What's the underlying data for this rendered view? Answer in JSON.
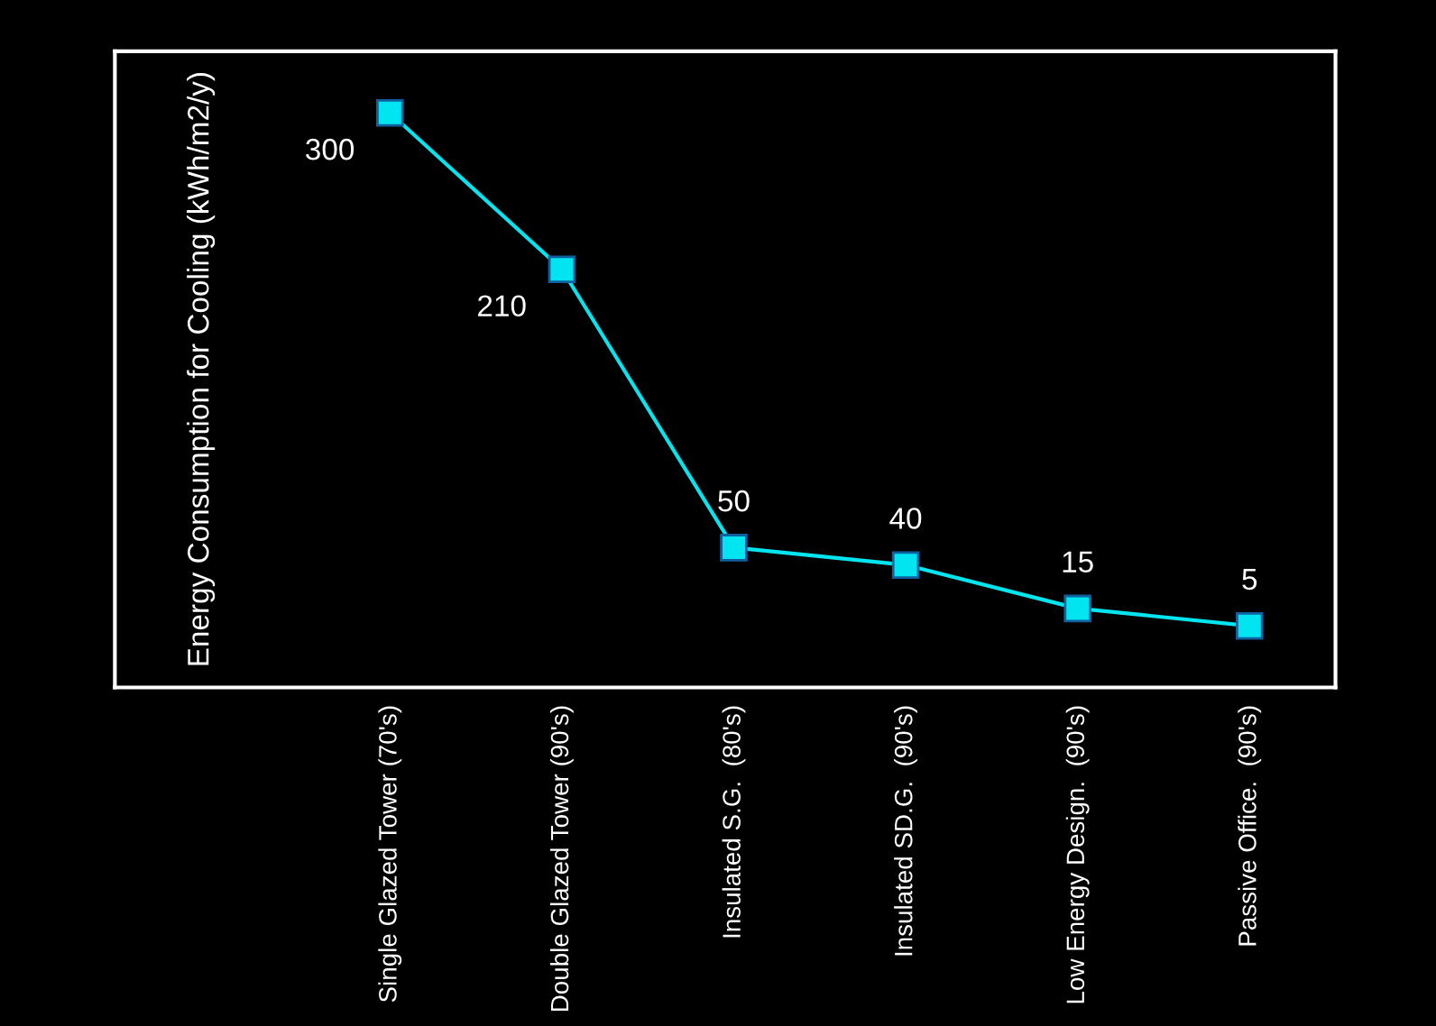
{
  "chart_data": {
    "type": "line",
    "ylabel": "Energy Consumption for Cooling (kWh/m2/y)",
    "categories": [
      "Single Glazed Tower (70's)",
      "Double Glazed Tower (90's)",
      "Insulated S.G.  (80's)",
      "Insulated SD.G.  (90's)",
      "Low Energy Design.  (90's)",
      "Passive Office.  (90's)"
    ],
    "series": [
      {
        "color": "#00e5f0",
        "values": [
          300,
          210,
          50,
          40,
          15,
          5
        ]
      }
    ],
    "data_labels": true,
    "marker": "square",
    "line_style": "solid",
    "grid": false,
    "legend": false,
    "tick_labels": "x"
  }
}
